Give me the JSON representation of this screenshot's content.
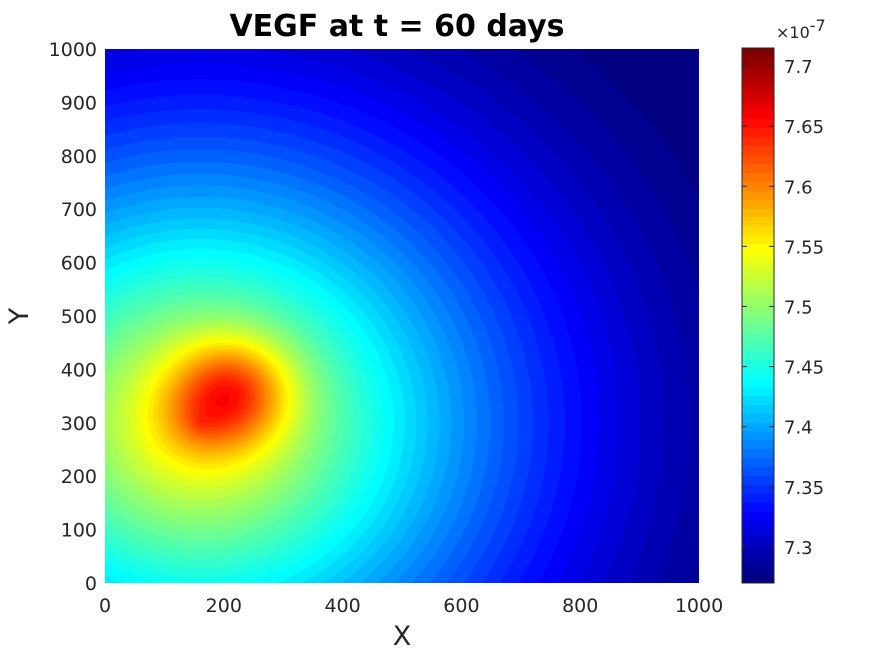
{
  "chart_data": {
    "type": "heatmap",
    "title": "VEGF at t = 60 days",
    "xlabel": "X",
    "ylabel": "Y",
    "xlim": [
      0,
      1000
    ],
    "ylim": [
      0,
      1000
    ],
    "xticks": [
      "0",
      "200",
      "400",
      "600",
      "800",
      "1000"
    ],
    "yticks": [
      "0",
      "100",
      "200",
      "300",
      "400",
      "500",
      "600",
      "700",
      "800",
      "900",
      "1000"
    ],
    "colormap": "jet",
    "colorbar": {
      "multiplier": "×10",
      "exponent": "-7",
      "range": [
        7.27,
        7.715
      ],
      "ticks": [
        "7.3",
        "7.35",
        "7.4",
        "7.45",
        "7.5",
        "7.55",
        "7.6",
        "7.65",
        "7.7"
      ]
    },
    "field": {
      "peak": {
        "x": 215,
        "y": 360,
        "value": 7.715
      },
      "minimum_region": {
        "x": 1000,
        "y": 1000,
        "value": 7.27
      },
      "left_edge_at_peak_height_value": 7.58
    },
    "contour_levels": 60,
    "colors": {
      "low": "#00008f",
      "mid": "#00ffff",
      "high": "#800000"
    }
  }
}
